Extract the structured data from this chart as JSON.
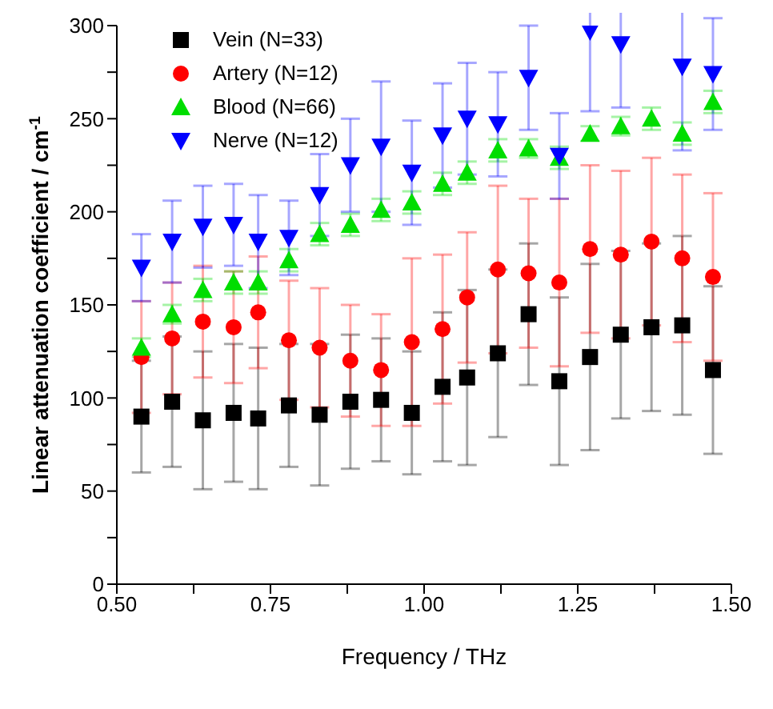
{
  "chart_data": {
    "type": "scatter",
    "xlabel": "Frequency / THz",
    "ylabel": "Linear attenuation coefficient / cm$^{-1}$",
    "x": [
      0.54,
      0.59,
      0.64,
      0.69,
      0.73,
      0.78,
      0.83,
      0.88,
      0.93,
      0.98,
      1.03,
      1.07,
      1.12,
      1.17,
      1.22,
      1.27,
      1.32,
      1.37,
      1.42,
      1.47
    ],
    "series": [
      {
        "name": "Vein (N=33)",
        "color": "#000000",
        "marker": "square",
        "values": [
          90,
          98,
          88,
          92,
          89,
          96,
          91,
          98,
          99,
          92,
          106,
          111,
          124,
          145,
          109,
          122,
          134,
          138,
          139,
          115
        ],
        "errors": [
          30,
          35,
          37,
          37,
          38,
          33,
          38,
          36,
          33,
          33,
          40,
          47,
          45,
          38,
          45,
          50,
          45,
          45,
          48,
          45
        ]
      },
      {
        "name": "Artery (N=12)",
        "color": "#ff0000",
        "marker": "circle",
        "values": [
          122,
          132,
          141,
          138,
          146,
          131,
          127,
          120,
          115,
          130,
          137,
          154,
          169,
          167,
          162,
          180,
          177,
          184,
          175,
          165
        ],
        "errors": [
          30,
          30,
          30,
          30,
          30,
          32,
          32,
          30,
          30,
          45,
          40,
          35,
          45,
          40,
          45,
          45,
          45,
          45,
          45,
          45
        ]
      },
      {
        "name": "Blood (N=66)",
        "color": "#00dd00",
        "marker": "triangle",
        "values": [
          127,
          145,
          158,
          162,
          162,
          174,
          188,
          193,
          201,
          205,
          215,
          221,
          233,
          234,
          229,
          242,
          246,
          250,
          242,
          259
        ],
        "errors": [
          5,
          5,
          6,
          6,
          6,
          6,
          6,
          6,
          6,
          6,
          6,
          6,
          6,
          5,
          6,
          4,
          5,
          6,
          6,
          6
        ]
      },
      {
        "name": "Nerve (N=12)",
        "color": "#0000ff",
        "marker": "triangle-down",
        "values": [
          170,
          184,
          192,
          193,
          184,
          186,
          209,
          225,
          235,
          221,
          241,
          250,
          247,
          272,
          230,
          297,
          290,
          null,
          278,
          274
        ],
        "errors": [
          18,
          22,
          22,
          22,
          25,
          20,
          22,
          25,
          35,
          28,
          28,
          30,
          28,
          28,
          23,
          43,
          34,
          null,
          45,
          30
        ]
      }
    ],
    "xlim": [
      0.5,
      1.5
    ],
    "xticks": [
      {
        "value": 0.5,
        "label": "0.50"
      },
      {
        "value": 0.625,
        "label": null
      },
      {
        "value": 0.75,
        "label": "0.75"
      },
      {
        "value": 0.875,
        "label": null
      },
      {
        "value": 1.0,
        "label": "1.00"
      },
      {
        "value": 1.125,
        "label": null
      },
      {
        "value": 1.25,
        "label": "1.25"
      },
      {
        "value": 1.375,
        "label": null
      },
      {
        "value": 1.5,
        "label": "1.50"
      }
    ],
    "ylim": [
      0,
      300
    ],
    "yticks": [
      0,
      {
        "value": 25,
        "label": null
      },
      50,
      {
        "value": 75,
        "label": null
      },
      100,
      {
        "value": 125,
        "label": null
      },
      150,
      {
        "value": 175,
        "label": null
      },
      200,
      {
        "value": 225,
        "label": null
      },
      250,
      {
        "value": 275,
        "label": null
      },
      300
    ],
    "grid": false,
    "legend": "top left"
  }
}
